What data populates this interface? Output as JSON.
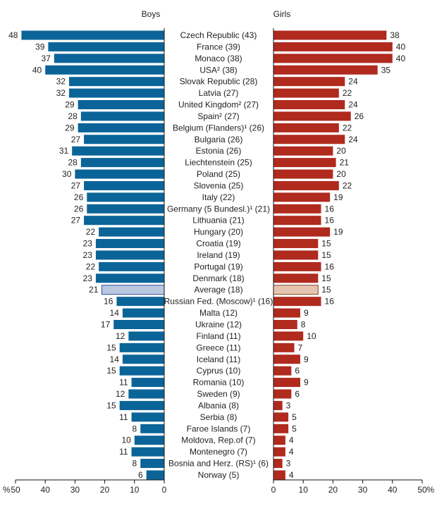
{
  "chart_data": {
    "type": "bar",
    "layout": "back-to-back horizontal bars",
    "panels": [
      {
        "title": "Boys",
        "xlim": [
          0,
          50
        ],
        "ticks": [
          "50",
          "40",
          "30",
          "20",
          "10",
          "0"
        ],
        "unit": "%"
      },
      {
        "title": "Girls",
        "xlim": [
          0,
          50
        ],
        "ticks": [
          "0",
          "10",
          "20",
          "30",
          "40",
          "50"
        ],
        "unit": "%"
      }
    ],
    "categories": [
      "Czech Republic (43)",
      "France (39)",
      "Monaco (38)",
      "USA² (38)",
      "Slovak Republic (28)",
      "Latvia (27)",
      "United Kingdom² (27)",
      "Spain² (27)",
      "Belgium (Flanders)¹ (26)",
      "Bulgaria (26)",
      "Estonia (26)",
      "Liechtenstein (25)",
      "Poland (25)",
      "Slovenia (25)",
      "Italy (22)",
      "Germany (5 Bundesl.)¹ (21)",
      "Lithuania (21)",
      "Hungary (20)",
      "Croatia (19)",
      "Ireland (19)",
      "Portugal (19)",
      "Denmark (18)",
      "Average (18)",
      "Russian Fed. (Moscow)¹ (16)",
      "Malta (12)",
      "Ukraine (12)",
      "Finland (11)",
      "Greece (11)",
      "Iceland (11)",
      "Cyprus (10)",
      "Romania (10)",
      "Sweden (9)",
      "Albania (8)",
      "Serbia (8)",
      "Faroe Islands (7)",
      "Moldova, Rep.of (7)",
      "Montenegro (7)",
      "Bosnia and Herz. (RS)¹ (6)",
      "Norway (5)"
    ],
    "series": [
      {
        "name": "Boys",
        "color": "#0b6498",
        "values": [
          48,
          39,
          37,
          40,
          32,
          32,
          29,
          28,
          29,
          27,
          31,
          28,
          30,
          27,
          26,
          26,
          27,
          22,
          23,
          23,
          22,
          23,
          21,
          16,
          14,
          17,
          12,
          15,
          14,
          15,
          11,
          12,
          15,
          11,
          8,
          10,
          11,
          8,
          6
        ]
      },
      {
        "name": "Girls",
        "color": "#b02a1e",
        "values": [
          38,
          40,
          40,
          35,
          24,
          22,
          24,
          26,
          22,
          24,
          20,
          21,
          20,
          22,
          19,
          16,
          16,
          19,
          15,
          15,
          16,
          15,
          15,
          16,
          9,
          8,
          10,
          7,
          9,
          6,
          9,
          6,
          3,
          5,
          5,
          4,
          4,
          3,
          4
        ]
      }
    ],
    "highlight_category": "Average (18)",
    "highlight_colors": {
      "boys": "#b9c7df",
      "girls": "#e6c3ae"
    },
    "grid": false,
    "legend": "none"
  }
}
